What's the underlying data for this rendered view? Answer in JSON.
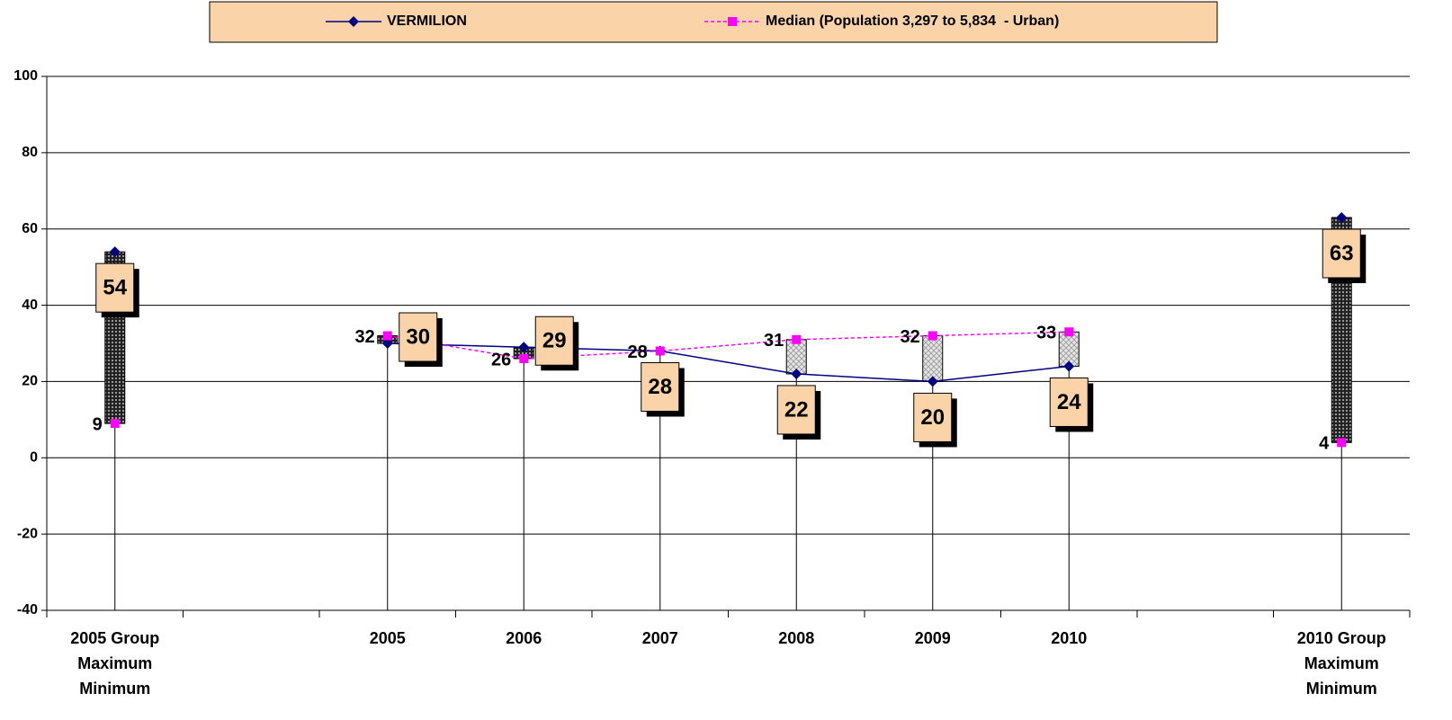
{
  "chart_data": {
    "type": "line",
    "categories": [
      "2005 Group\nMaximum\nMinimum",
      null,
      "2005",
      "2006",
      "2007",
      "2008",
      "2009",
      "2010",
      null,
      "2010 Group\nMaximum\nMinimum"
    ],
    "series": [
      {
        "name": "VERMILION",
        "color": "#000080",
        "marker": "diamond",
        "line": "solid",
        "values": [
          54,
          null,
          30,
          29,
          28,
          22,
          20,
          24,
          null,
          63
        ]
      },
      {
        "name": "Median (Population 3,297 to 5,834  - Urban)",
        "color": "#ff00ff",
        "marker": "square",
        "line": "dashed",
        "values": [
          9,
          null,
          32,
          26,
          28,
          31,
          32,
          33,
          null,
          4
        ]
      }
    ],
    "bar_fills": [
      "dark",
      null,
      "dark",
      "dark",
      null,
      "light",
      "light",
      "light",
      null,
      "dark"
    ],
    "ylim": [
      -40,
      100
    ],
    "yticks": [
      -40,
      -20,
      0,
      20,
      40,
      60,
      80,
      100
    ],
    "grid": true,
    "legend": "top"
  }
}
